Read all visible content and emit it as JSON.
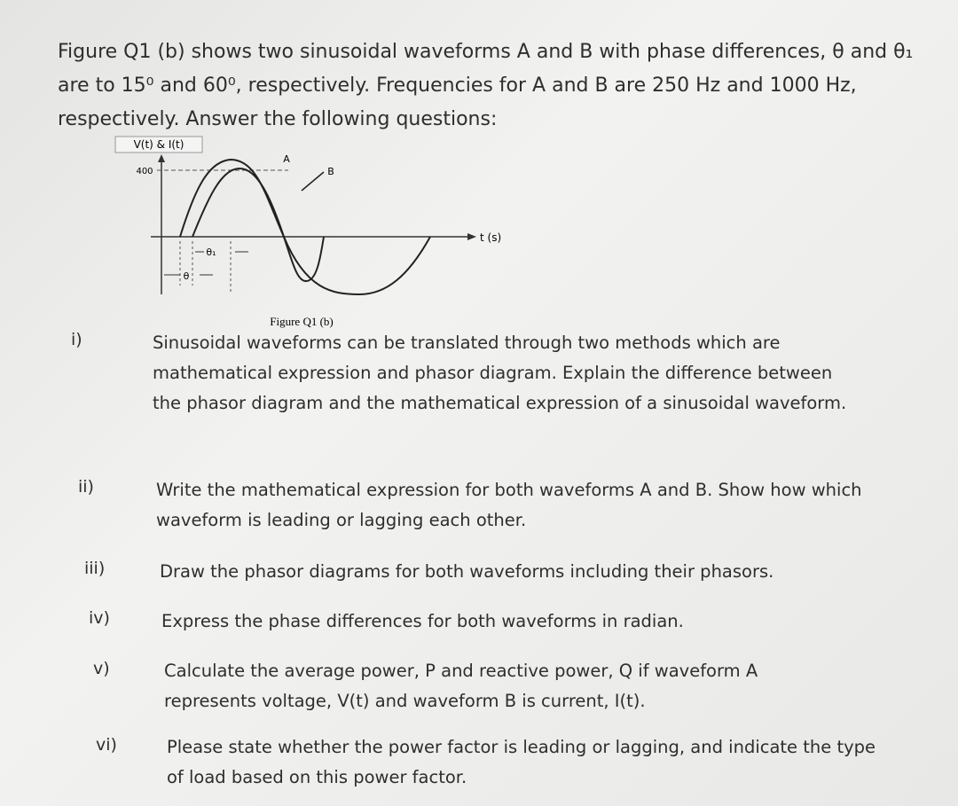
{
  "intro": "Figure Q1 (b) shows two sinusoidal waveforms A and B with phase differences, θ and θ₁ are to 15⁰ and 60⁰, respectively. Frequencies for A and B are 250 Hz and 1000 Hz, respectively. Answer the following questions:",
  "figure": {
    "y_axis_label": "V(t) & I(t)",
    "peak_label": "400",
    "wave_a_label": "A",
    "wave_b_label": "B",
    "x_axis_label": "t (s)",
    "theta_label": "θ",
    "theta1_label": "θ₁",
    "caption": "Figure Q1 (b)"
  },
  "questions": [
    {
      "number": "i)",
      "text": "Sinusoidal waveforms can be translated through two methods which are mathematical expression and phasor diagram. Explain the difference between the phasor diagram and the mathematical expression of a sinusoidal waveform."
    },
    {
      "number": "ii)",
      "text": "Write the mathematical expression for both waveforms A and B. Show how which waveform is leading or lagging each other."
    },
    {
      "number": "iii)",
      "text": "Draw the phasor diagrams for both waveforms including their phasors."
    },
    {
      "number": "iv)",
      "text": "Express the phase differences for both waveforms in radian."
    },
    {
      "number": "v)",
      "text": "Calculate the average power, P and reactive power, Q if waveform A represents voltage, V(t) and waveform B is current, I(t)."
    },
    {
      "number": "vi)",
      "text": "Please state whether the power factor is leading or lagging, and indicate the type of load based on this power factor."
    }
  ]
}
